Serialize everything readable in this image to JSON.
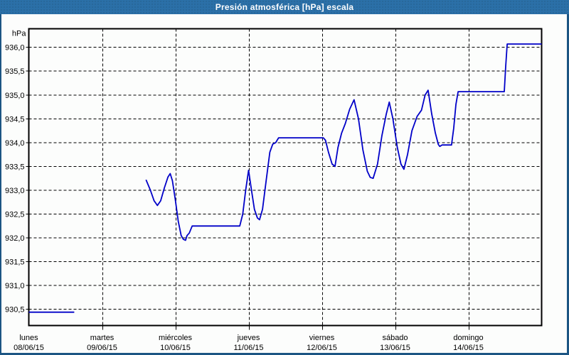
{
  "title": "Presión atmosférica [hPa] escala",
  "colors": {
    "titlebar_bg": "#2B70A8",
    "title_text": "#FFFFFF",
    "window_border": "#1C5583",
    "background": "#FCFDFC",
    "grid": "#000000",
    "axis_text": "#000000",
    "line": "#0000C8"
  },
  "chart_data": {
    "type": "line",
    "title": "Presión atmosférica [hPa] escala",
    "ylabel": "hPa",
    "xlabel": "",
    "grid": true,
    "legend": "none",
    "y_axis": {
      "range": [
        930.16,
        936.39
      ],
      "tick_step": 0.5,
      "ticks": [
        {
          "label": "936,0",
          "value": 936.0
        },
        {
          "label": "935,5",
          "value": 935.5
        },
        {
          "label": "935,0",
          "value": 935.0
        },
        {
          "label": "934,5",
          "value": 934.5
        },
        {
          "label": "934,0",
          "value": 934.0
        },
        {
          "label": "933,5",
          "value": 933.5
        },
        {
          "label": "933,0",
          "value": 933.0
        },
        {
          "label": "932,5",
          "value": 932.5
        },
        {
          "label": "932,0",
          "value": 932.0
        },
        {
          "label": "931,5",
          "value": 931.5
        },
        {
          "label": "931,0",
          "value": 931.0
        },
        {
          "label": "930,5",
          "value": 930.5
        }
      ]
    },
    "x_axis": {
      "range_days": [
        0,
        7
      ],
      "days": [
        {
          "name": "lunes",
          "date": "08/06/15"
        },
        {
          "name": "martes",
          "date": "09/06/15"
        },
        {
          "name": "miércoles",
          "date": "10/06/15"
        },
        {
          "name": "jueves",
          "date": "11/06/15"
        },
        {
          "name": "viernes",
          "date": "12/06/15"
        },
        {
          "name": "sábado",
          "date": "13/06/15"
        },
        {
          "name": "domingo",
          "date": "14/06/15"
        }
      ]
    },
    "series": [
      {
        "name": "Presión atmosférica",
        "unit": "hPa",
        "color": "#0000C8",
        "segments": [
          [
            [
              0.0,
              930.44
            ],
            [
              0.62,
              930.44
            ]
          ],
          [
            [
              1.6,
              933.22
            ],
            [
              1.66,
              933.0
            ],
            [
              1.71,
              932.78
            ],
            [
              1.755,
              932.68
            ],
            [
              1.8,
              932.78
            ],
            [
              1.85,
              933.05
            ],
            [
              1.9,
              933.28
            ],
            [
              1.93,
              933.35
            ],
            [
              1.96,
              933.2
            ],
            [
              2.0,
              932.8
            ],
            [
              2.04,
              932.35
            ],
            [
              2.08,
              932.05
            ],
            [
              2.11,
              931.97
            ],
            [
              2.14,
              931.95
            ],
            [
              2.16,
              932.05
            ],
            [
              2.19,
              932.1
            ],
            [
              2.23,
              932.25
            ],
            [
              2.88,
              932.25
            ],
            [
              2.92,
              932.5
            ],
            [
              2.96,
              933.0
            ],
            [
              3.0,
              933.42
            ],
            [
              3.04,
              933.0
            ],
            [
              3.08,
              932.6
            ],
            [
              3.12,
              932.42
            ],
            [
              3.15,
              932.38
            ],
            [
              3.19,
              932.6
            ],
            [
              3.24,
              933.2
            ],
            [
              3.29,
              933.8
            ],
            [
              3.33,
              933.97
            ],
            [
              3.37,
              934.0
            ],
            [
              3.41,
              934.1
            ],
            [
              4.02,
              934.1
            ],
            [
              4.05,
              934.05
            ],
            [
              4.09,
              933.8
            ],
            [
              4.14,
              933.55
            ],
            [
              4.18,
              933.5
            ],
            [
              4.22,
              933.9
            ],
            [
              4.27,
              934.2
            ],
            [
              4.32,
              934.4
            ],
            [
              4.38,
              934.7
            ],
            [
              4.44,
              934.9
            ],
            [
              4.5,
              934.5
            ],
            [
              4.56,
              933.85
            ],
            [
              4.62,
              933.4
            ],
            [
              4.66,
              933.27
            ],
            [
              4.7,
              933.25
            ],
            [
              4.76,
              933.55
            ],
            [
              4.82,
              934.15
            ],
            [
              4.88,
              934.6
            ],
            [
              4.92,
              934.85
            ],
            [
              4.97,
              934.5
            ],
            [
              5.03,
              933.9
            ],
            [
              5.08,
              933.55
            ],
            [
              5.12,
              933.44
            ],
            [
              5.17,
              933.75
            ],
            [
              5.23,
              934.25
            ],
            [
              5.3,
              934.55
            ],
            [
              5.36,
              934.68
            ],
            [
              5.41,
              935.0
            ],
            [
              5.45,
              935.1
            ],
            [
              5.5,
              934.6
            ],
            [
              5.55,
              934.2
            ],
            [
              5.59,
              933.96
            ],
            [
              5.61,
              933.92
            ],
            [
              5.64,
              933.95
            ],
            [
              5.77,
              933.95
            ],
            [
              5.8,
              934.3
            ],
            [
              5.83,
              934.8
            ],
            [
              5.86,
              935.07
            ],
            [
              6.49,
              935.07
            ],
            [
              6.51,
              935.6
            ],
            [
              6.53,
              936.07
            ],
            [
              7.0,
              936.07
            ]
          ]
        ]
      }
    ]
  }
}
